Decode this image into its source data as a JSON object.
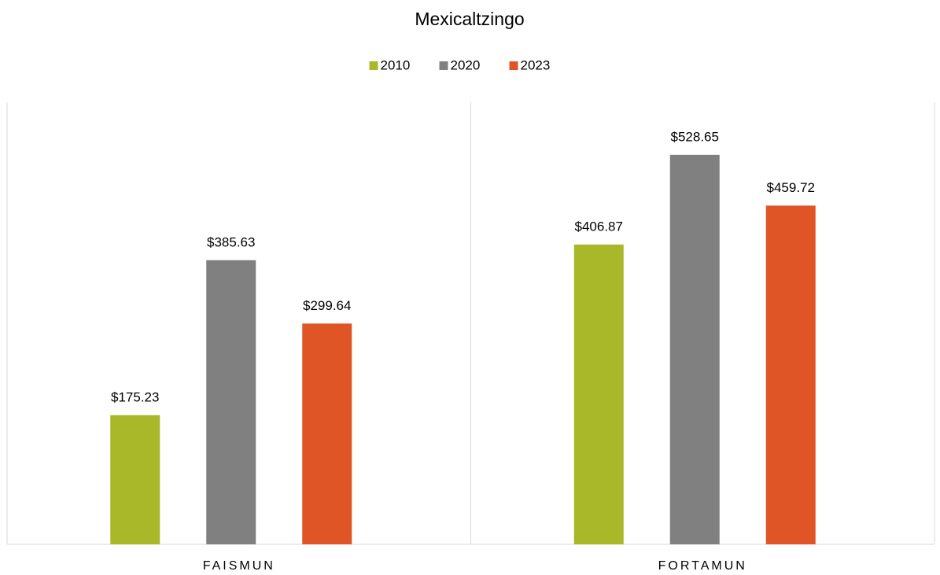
{
  "chart_data": {
    "type": "bar",
    "title": "Mexicaltzingo",
    "categories": [
      "FAISMUN",
      "FORTAMUN"
    ],
    "series": [
      {
        "name": "2010",
        "color": "#a8b828",
        "values": [
          175.23,
          406.87
        ],
        "value_labels": [
          "$175.23",
          "$406.87"
        ]
      },
      {
        "name": "2020",
        "color": "#808080",
        "values": [
          385.63,
          528.65
        ],
        "value_labels": [
          "$385.63",
          "$528.65"
        ]
      },
      {
        "name": "2023",
        "color": "#e05526",
        "values": [
          299.64,
          459.72
        ],
        "value_labels": [
          "$299.64",
          "$459.72"
        ]
      }
    ],
    "ylim": [
      0,
      600
    ],
    "legend": "top"
  }
}
